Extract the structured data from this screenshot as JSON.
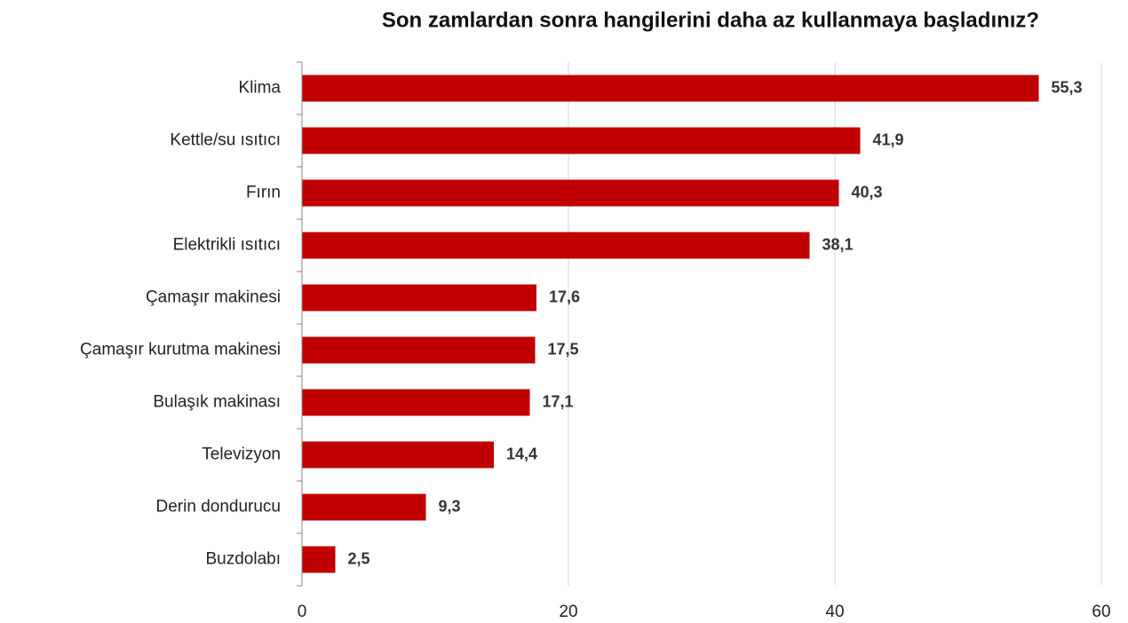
{
  "chart_data": {
    "type": "bar",
    "orientation": "horizontal",
    "title": "Son zamlardan sonra hangilerini daha az kullanmaya başladınız?",
    "categories": [
      "Klima",
      "Kettle/su ısıtıcı",
      "Fırın",
      "Elektrikli ısıtıcı",
      "Çamaşır makinesi",
      "Çamaşır kurutma makinesi",
      "Bulaşık makinası",
      "Televizyon",
      "Derin dondurucu",
      "Buzdolabı"
    ],
    "values": [
      55.3,
      41.9,
      40.3,
      38.1,
      17.6,
      17.5,
      17.1,
      14.4,
      9.3,
      2.5
    ],
    "value_labels": [
      "55,3",
      "41,9",
      "40,3",
      "38,1",
      "17,6",
      "17,5",
      "17,1",
      "14,4",
      "9,3",
      "2,5"
    ],
    "color": "#c00000",
    "xlim": [
      0,
      60
    ],
    "xticks": [
      0,
      20,
      40,
      60
    ],
    "grid": true
  }
}
